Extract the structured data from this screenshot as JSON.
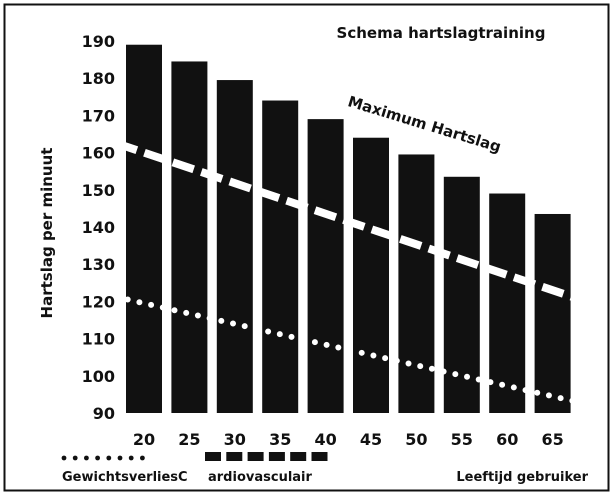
{
  "chart_data": {
    "type": "bar",
    "title": "Schema hartslagtraining",
    "ylabel": "Hartslag per minuut",
    "xlabel": "Leeftijd gebruiker",
    "categories": [
      "20",
      "25",
      "30",
      "35",
      "40",
      "45",
      "50",
      "55",
      "60",
      "65"
    ],
    "ylim": [
      90,
      190
    ],
    "yticks": [
      "190",
      "180",
      "170",
      "160",
      "150",
      "140",
      "130",
      "120",
      "110",
      "100",
      "90"
    ],
    "series": [
      {
        "name": "Maximum Hartslag",
        "type": "bar",
        "values": [
          189,
          184.5,
          179.5,
          174,
          169,
          164,
          159.5,
          153.5,
          149,
          143.5
        ]
      },
      {
        "name": "ardiovasculair",
        "type": "line",
        "style": "dashed",
        "start": {
          "x": "20",
          "y": 160
        },
        "end": {
          "x": "65",
          "y": 123
        }
      },
      {
        "name": "GewichtsverliesC",
        "type": "line",
        "style": "dotted",
        "start": {
          "x": "20",
          "y": 119.5
        },
        "end": {
          "x": "65",
          "y": 94.5
        }
      }
    ],
    "annotation": "Maximum Hartslag",
    "legend": {
      "placement": "bottom",
      "items": [
        {
          "style": "dotted",
          "label": "GewichtsverliesC"
        },
        {
          "style": "dashed-thick",
          "label": "ardiovasculair"
        }
      ]
    },
    "grid": false,
    "colors": {
      "bars": "#111111",
      "lines": "#ffffff",
      "frame": "#111111",
      "background": "#ffffff"
    }
  }
}
